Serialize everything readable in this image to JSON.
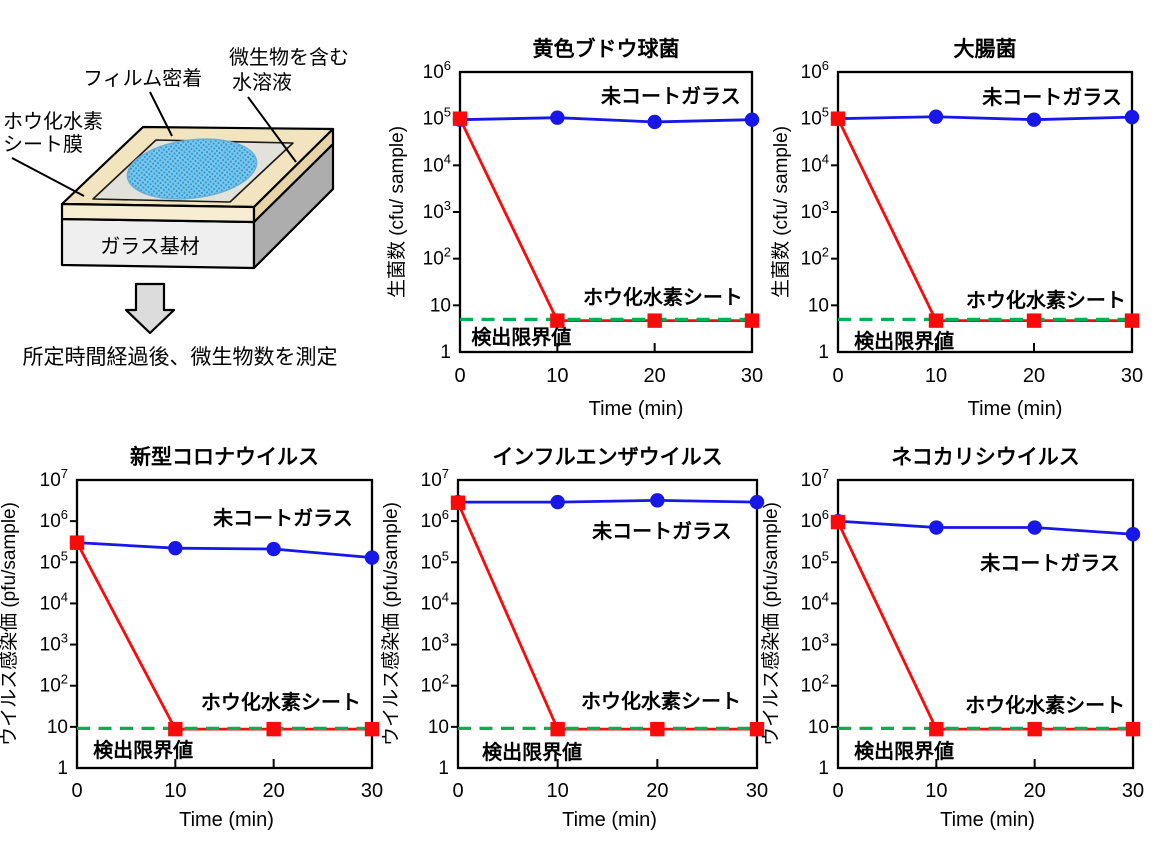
{
  "page": {
    "background": "#FFFFFF"
  },
  "colors": {
    "blue": "#1717E8",
    "red": "#FB0A0A",
    "green": "#00B050",
    "axis": "#000000",
    "cream_top": "#F2E4BE",
    "cream_front": "#F6EDD2",
    "cream_side": "#E6D3A6",
    "glass_front": "#EFEFEF",
    "glass_side": "#ADADAD",
    "panel": "#E2E2DA",
    "droplet_base": "#7CC7EC",
    "droplet_dot": "#2F9AD2",
    "arrow_fill": "#DCDCDC"
  },
  "diagram": {
    "labels": {
      "film": "フィルム密着",
      "solution_line1": "微生物を含む",
      "solution_line2": "水溶液",
      "sheet_line1": "ホウ化水素",
      "sheet_line2": "シート膜",
      "substrate": "ガラス基材",
      "caption": "所定時間経過後、微生物数を測定"
    }
  },
  "chart_data": [
    {
      "id": "staph",
      "type": "line",
      "title": "黄色ブドウ球菌",
      "ylabel": "生菌数 (cfu/ sample)",
      "xlabel": "Time (min)",
      "ylog": true,
      "ylim": [
        1,
        1000000
      ],
      "xlim": [
        0,
        30
      ],
      "x": [
        0,
        10,
        20,
        30
      ],
      "xticks": [
        0,
        10,
        20,
        30
      ],
      "grid": false,
      "series": [
        {
          "name": "未コートガラス",
          "color": "blue",
          "marker": "circle",
          "values": [
            95000,
            105000,
            85000,
            95000
          ]
        },
        {
          "name": "ホウ化水素シート",
          "color": "red",
          "marker": "square",
          "values": [
            100000,
            4.7,
            4.7,
            4.7
          ]
        }
      ],
      "detection_limit": {
        "label": "検出限界値",
        "value": 5
      },
      "annotations": {
        "uncoated": {
          "fx": 0.722,
          "fy": 0.086
        },
        "coated": {
          "fx": 0.695,
          "fy": 0.803
        },
        "limit": {
          "fx": 0.21,
          "fy": 0.946
        }
      }
    },
    {
      "id": "ecoli",
      "type": "line",
      "title": "大腸菌",
      "ylabel": "生菌数 (cfu/ sample)",
      "xlabel": "Time (min)",
      "ylog": true,
      "ylim": [
        1,
        1000000
      ],
      "xlim": [
        0,
        30
      ],
      "x": [
        0,
        10,
        20,
        30
      ],
      "xticks": [
        0,
        10,
        20,
        30
      ],
      "grid": false,
      "series": [
        {
          "name": "未コートガラス",
          "color": "blue",
          "marker": "circle",
          "values": [
            100000,
            110000,
            95000,
            108000
          ]
        },
        {
          "name": "ホウ化水素シート",
          "color": "red",
          "marker": "square",
          "values": [
            100000,
            4.7,
            4.7,
            4.7
          ]
        }
      ],
      "detection_limit": {
        "label": "検出限界値",
        "value": 5
      },
      "annotations": {
        "uncoated": {
          "fx": 0.728,
          "fy": 0.089
        },
        "coated": {
          "fx": 0.707,
          "fy": 0.814
        },
        "limit": {
          "fx": 0.225,
          "fy": 0.96
        }
      }
    },
    {
      "id": "corona",
      "type": "line",
      "title": "新型コロナウイルス",
      "ylabel": "ウイルス感染価 (pfu/sample)",
      "xlabel": "Time (min)",
      "ylog": true,
      "ylim": [
        1,
        10000000
      ],
      "xlim": [
        0,
        30
      ],
      "x": [
        0,
        10,
        20,
        30
      ],
      "xticks": [
        0,
        10,
        20,
        30
      ],
      "grid": false,
      "series": [
        {
          "name": "未コートガラス",
          "color": "blue",
          "marker": "circle",
          "values": [
            300000,
            220000,
            210000,
            130000
          ]
        },
        {
          "name": "ホウ化水素シート",
          "color": "red",
          "marker": "square",
          "values": [
            300000,
            8.8,
            8.8,
            8.8
          ]
        }
      ],
      "detection_limit": {
        "label": "検出限界値",
        "value": 9.2
      },
      "annotations": {
        "uncoated": {
          "fx": 0.698,
          "fy": 0.132
        },
        "coated": {
          "fx": 0.691,
          "fy": 0.771
        },
        "limit": {
          "fx": 0.224,
          "fy": 0.937
        }
      }
    },
    {
      "id": "influenza",
      "type": "line",
      "title": "インフルエンザウイルス",
      "ylabel": "ウイルス感染価 (pfu/sample)",
      "xlabel": "Time (min)",
      "ylog": true,
      "ylim": [
        1,
        10000000
      ],
      "xlim": [
        0,
        30
      ],
      "x": [
        0,
        10,
        20,
        30
      ],
      "xticks": [
        0,
        10,
        20,
        30
      ],
      "grid": false,
      "series": [
        {
          "name": "未コートガラス",
          "color": "blue",
          "marker": "circle",
          "values": [
            2900000,
            2900000,
            3200000,
            2900000
          ]
        },
        {
          "name": "ホウ化水素シート",
          "color": "red",
          "marker": "square",
          "values": [
            2800000,
            8.8,
            8.8,
            8.8
          ]
        }
      ],
      "detection_limit": {
        "label": "検出限界値",
        "value": 9.2
      },
      "annotations": {
        "uncoated": {
          "fx": 0.682,
          "fy": 0.177
        },
        "coated": {
          "fx": 0.679,
          "fy": 0.767
        },
        "limit": {
          "fx": 0.248,
          "fy": 0.944
        }
      }
    },
    {
      "id": "calici",
      "type": "line",
      "title": "ネコカリシウイルス",
      "ylabel": "ウイルス感染価 (pfu/sample)",
      "xlabel": "Time (min)",
      "ylog": true,
      "ylim": [
        1,
        10000000
      ],
      "xlim": [
        0,
        30
      ],
      "x": [
        0,
        10,
        20,
        30
      ],
      "xticks": [
        0,
        10,
        20,
        30
      ],
      "grid": false,
      "series": [
        {
          "name": "未コートガラス",
          "color": "blue",
          "marker": "circle",
          "values": [
            1000000,
            700000,
            700000,
            480000
          ]
        },
        {
          "name": "ホウ化水素シート",
          "color": "red",
          "marker": "square",
          "values": [
            950000,
            8.8,
            8.8,
            8.8
          ]
        }
      ],
      "detection_limit": {
        "label": "検出限界値",
        "value": 9.2
      },
      "annotations": {
        "uncoated": {
          "fx": 0.719,
          "fy": 0.288
        },
        "coated": {
          "fx": 0.702,
          "fy": 0.781
        },
        "limit": {
          "fx": 0.224,
          "fy": 0.941
        }
      }
    }
  ]
}
